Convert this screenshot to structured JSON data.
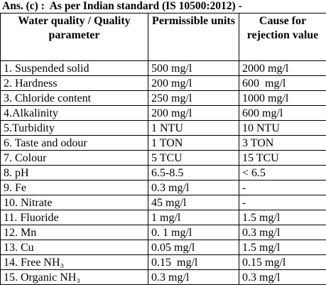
{
  "header": {
    "title": "Ans. (c) :  As per Indian standard (IS 10500:2012) -"
  },
  "table": {
    "columns": [
      "Water quality / Quality parameter",
      "Permissible units",
      "Cause for rejection value"
    ],
    "rows": [
      [
        "1. Suspended solid",
        "500 mg/l",
        "2000 mg/l"
      ],
      [
        "2. Hardness",
        "200 mg/l",
        "600  mg/l"
      ],
      [
        "3. Chloride content",
        "250 mg/l",
        "1000 mg/l"
      ],
      [
        "4.Alkalinity",
        "200 mg/l",
        "600 mg/l"
      ],
      [
        "5.Turbidity",
        "1 NTU",
        "10 NTU"
      ],
      [
        "6. Taste and odour",
        "1 TON",
        "3 TON"
      ],
      [
        "7. Colour",
        "5 TCU",
        "15 TCU"
      ],
      [
        "8. pH",
        "6.5-8.5",
        "< 6.5"
      ],
      [
        "9. Fe",
        "0.3 mg/l",
        "-"
      ],
      [
        "10. Nitrate",
        "45 mg/l",
        "-"
      ],
      [
        "11. Fluoride",
        "1 mg/l",
        "1.5 mg/l"
      ],
      [
        "12. Mn",
        "0. 1 mg/l",
        "0.3 mg/l"
      ],
      [
        "13. Cu",
        "0.05 mg/l",
        "1.5 mg/l"
      ],
      [
        "14. Free NH₃",
        "0.15  mg/l",
        "0.15 mg/l"
      ],
      [
        "15. Organic NH₃",
        "0.3 mg/l",
        "0.3 mg/l"
      ]
    ]
  }
}
